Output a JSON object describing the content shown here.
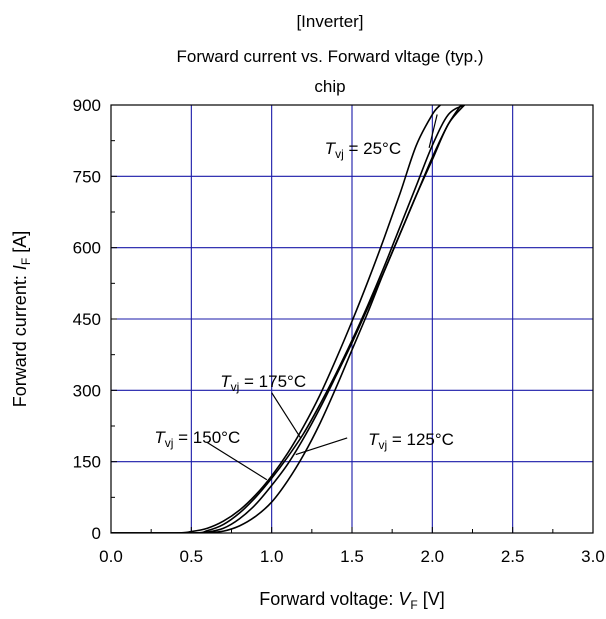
{
  "chart_data": {
    "type": "line",
    "title_lines": [
      "[Inverter]",
      "Forward current vs. Forward vltage (typ.)",
      "chip"
    ],
    "xlabel": {
      "prefix": "Forward voltage: ",
      "symbol": "V",
      "sub": "F",
      "unit": " [V]"
    },
    "ylabel": {
      "prefix": "Forward current: ",
      "symbol": "I",
      "sub": "F",
      "unit": " [A]"
    },
    "xlim": [
      0,
      3
    ],
    "ylim": [
      0,
      900
    ],
    "x_ticks": [
      0.0,
      0.5,
      1.0,
      1.5,
      2.0,
      2.5,
      3.0
    ],
    "x_tick_labels": [
      "0.0",
      "0.5",
      "1.0",
      "1.5",
      "2.0",
      "2.5",
      "3.0"
    ],
    "y_ticks": [
      0,
      150,
      300,
      450,
      600,
      750,
      900
    ],
    "y_tick_labels": [
      "0",
      "150",
      "300",
      "450",
      "600",
      "750",
      "900"
    ],
    "grid": true,
    "grid_color": "#1a1aa8",
    "line_color": "#000000",
    "series": [
      {
        "name": "T_vj = 25°C",
        "x": [
          0.0,
          0.4,
          0.5,
          0.6,
          0.7,
          0.8,
          0.9,
          1.0,
          1.1,
          1.2,
          1.3,
          1.4,
          1.5,
          1.6,
          1.7,
          1.8,
          1.9,
          2.0,
          2.05
        ],
        "y": [
          0,
          0,
          3,
          10,
          25,
          48,
          80,
          120,
          168,
          225,
          290,
          365,
          445,
          530,
          620,
          715,
          815,
          880,
          900
        ]
      },
      {
        "name": "T_vj = 125°C",
        "x": [
          0.0,
          0.5,
          0.6,
          0.7,
          0.8,
          0.9,
          1.0,
          1.1,
          1.2,
          1.3,
          1.4,
          1.5,
          1.6,
          1.7,
          1.8,
          1.9,
          2.0,
          2.1,
          2.2
        ],
        "y": [
          0,
          0,
          1,
          4,
          15,
          35,
          65,
          110,
          165,
          230,
          305,
          385,
          465,
          550,
          630,
          710,
          785,
          860,
          900
        ]
      },
      {
        "name": "T_vj = 150°C",
        "x": [
          0.0,
          0.5,
          0.6,
          0.7,
          0.8,
          0.9,
          1.0,
          1.1,
          1.2,
          1.3,
          1.4,
          1.5,
          1.6,
          1.7,
          1.8,
          1.9,
          2.0,
          2.1,
          2.2
        ],
        "y": [
          0,
          0,
          2,
          10,
          30,
          60,
          100,
          145,
          200,
          262,
          330,
          400,
          475,
          550,
          630,
          710,
          790,
          860,
          910
        ]
      },
      {
        "name": "T_vj = 175°C",
        "x": [
          0.0,
          0.5,
          0.6,
          0.7,
          0.8,
          0.9,
          1.0,
          1.1,
          1.2,
          1.3,
          1.4,
          1.5,
          1.6,
          1.7,
          1.8,
          1.9,
          2.0,
          2.1,
          2.2
        ],
        "y": [
          0,
          0,
          5,
          18,
          42,
          75,
          115,
          160,
          210,
          270,
          335,
          405,
          480,
          560,
          645,
          730,
          815,
          880,
          900
        ]
      }
    ],
    "annotations": [
      {
        "base": "T",
        "sub": "vj",
        "rest": " = 25°C",
        "label_x": 1.33,
        "label_y": 810,
        "leader": [
          [
            1.98,
            810
          ],
          [
            2.03,
            880
          ]
        ]
      },
      {
        "base": "T",
        "sub": "vj",
        "rest": " = 175°C",
        "label_x": 0.68,
        "label_y": 320,
        "leader": [
          [
            1.0,
            295
          ],
          [
            1.18,
            200
          ]
        ]
      },
      {
        "base": "T",
        "sub": "vj",
        "rest": " = 150°C",
        "label_x": 0.27,
        "label_y": 202,
        "leader": [
          [
            0.6,
            190
          ],
          [
            0.97,
            112
          ]
        ]
      },
      {
        "base": "T",
        "sub": "vj",
        "rest": " = 125°C",
        "label_x": 1.6,
        "label_y": 198,
        "leader": [
          [
            1.47,
            200
          ],
          [
            1.15,
            165
          ]
        ]
      }
    ]
  }
}
